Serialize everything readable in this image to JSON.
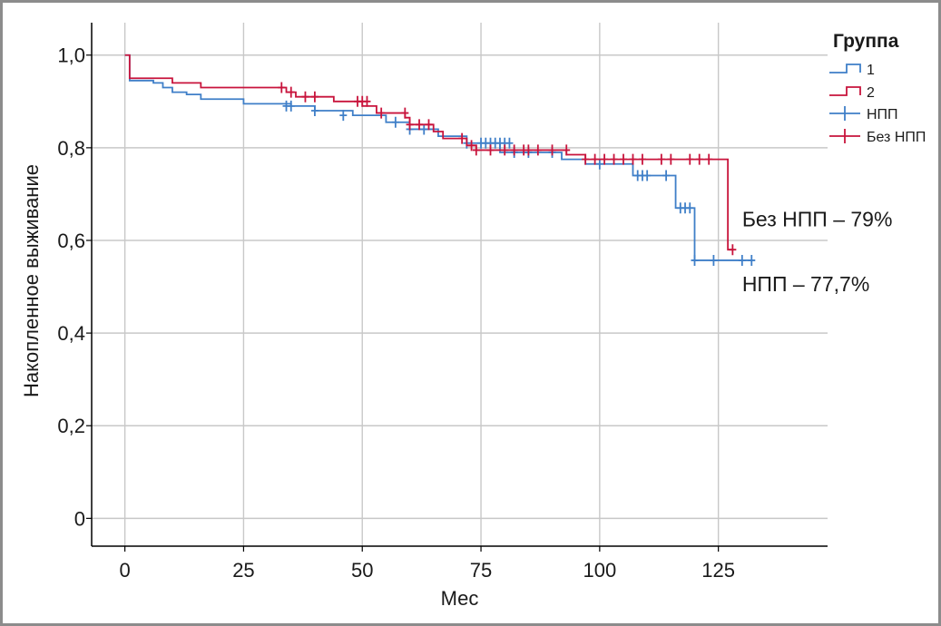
{
  "chart_data": {
    "type": "line",
    "subtype": "kaplan-meier step curve",
    "xlabel": "Мес",
    "ylabel": "Накопленное выживание",
    "xlim": [
      -7,
      148
    ],
    "ylim": [
      -0.06,
      1.07
    ],
    "x_ticks": [
      0,
      25,
      50,
      75,
      100,
      125
    ],
    "x_tick_labels": [
      "0",
      "25",
      "50",
      "75",
      "100",
      "125"
    ],
    "y_ticks": [
      0,
      0.2,
      0.4,
      0.6,
      0.8,
      1.0
    ],
    "y_tick_labels": [
      "0",
      "0,2",
      "0,4",
      "0,6",
      "0,8",
      "1,0"
    ],
    "grid": true,
    "legend": {
      "title": "Группа",
      "position": "top-right",
      "entries": [
        {
          "label": "1",
          "kind": "step-line",
          "color": "#3f7fc8"
        },
        {
          "label": "2",
          "kind": "step-line",
          "color": "#c8143c"
        },
        {
          "label": "НПП",
          "kind": "censor-mark",
          "color": "#3f7fc8"
        },
        {
          "label": "Без НПП",
          "kind": "censor-mark",
          "color": "#c8143c"
        }
      ]
    },
    "series": [
      {
        "name": "1",
        "color": "#3f7fc8",
        "x": [
          0,
          1,
          6,
          8,
          10,
          13,
          16,
          25,
          35,
          40,
          48,
          55,
          60,
          66,
          72,
          79,
          92,
          97,
          107,
          116,
          120
        ],
        "y": [
          1.0,
          0.945,
          0.94,
          0.93,
          0.92,
          0.915,
          0.905,
          0.895,
          0.89,
          0.88,
          0.87,
          0.855,
          0.84,
          0.825,
          0.81,
          0.79,
          0.775,
          0.765,
          0.74,
          0.67,
          0.557
        ],
        "end_x": 132,
        "censored": [
          {
            "x": 34,
            "y": 0.89
          },
          {
            "x": 35,
            "y": 0.89
          },
          {
            "x": 40,
            "y": 0.88
          },
          {
            "x": 46,
            "y": 0.87
          },
          {
            "x": 57,
            "y": 0.855
          },
          {
            "x": 60,
            "y": 0.84
          },
          {
            "x": 63,
            "y": 0.84
          },
          {
            "x": 72,
            "y": 0.81
          },
          {
            "x": 75,
            "y": 0.81
          },
          {
            "x": 76,
            "y": 0.81
          },
          {
            "x": 77,
            "y": 0.81
          },
          {
            "x": 78,
            "y": 0.81
          },
          {
            "x": 79,
            "y": 0.81
          },
          {
            "x": 80,
            "y": 0.81
          },
          {
            "x": 81,
            "y": 0.81
          },
          {
            "x": 82,
            "y": 0.79
          },
          {
            "x": 85,
            "y": 0.79
          },
          {
            "x": 90,
            "y": 0.79
          },
          {
            "x": 100,
            "y": 0.765
          },
          {
            "x": 108,
            "y": 0.74
          },
          {
            "x": 109,
            "y": 0.74
          },
          {
            "x": 110,
            "y": 0.74
          },
          {
            "x": 114,
            "y": 0.74
          },
          {
            "x": 117,
            "y": 0.67
          },
          {
            "x": 118,
            "y": 0.67
          },
          {
            "x": 119,
            "y": 0.67
          },
          {
            "x": 120,
            "y": 0.557
          },
          {
            "x": 124,
            "y": 0.557
          },
          {
            "x": 130,
            "y": 0.557
          },
          {
            "x": 132,
            "y": 0.557
          }
        ]
      },
      {
        "name": "2",
        "color": "#c8143c",
        "x": [
          0,
          1,
          10,
          16,
          34,
          36,
          44,
          50,
          53,
          59,
          60,
          65,
          67,
          72,
          74,
          93,
          97,
          127
        ],
        "y": [
          1.0,
          0.95,
          0.94,
          0.93,
          0.92,
          0.91,
          0.9,
          0.89,
          0.875,
          0.865,
          0.85,
          0.835,
          0.82,
          0.805,
          0.795,
          0.785,
          0.775,
          0.58
        ],
        "end_x": 128,
        "censored": [
          {
            "x": 33,
            "y": 0.93
          },
          {
            "x": 35,
            "y": 0.92
          },
          {
            "x": 38,
            "y": 0.91
          },
          {
            "x": 40,
            "y": 0.91
          },
          {
            "x": 49,
            "y": 0.9
          },
          {
            "x": 50,
            "y": 0.9
          },
          {
            "x": 51,
            "y": 0.9
          },
          {
            "x": 54,
            "y": 0.875
          },
          {
            "x": 59,
            "y": 0.875
          },
          {
            "x": 60,
            "y": 0.85
          },
          {
            "x": 62,
            "y": 0.85
          },
          {
            "x": 64,
            "y": 0.85
          },
          {
            "x": 71,
            "y": 0.82
          },
          {
            "x": 73,
            "y": 0.805
          },
          {
            "x": 74,
            "y": 0.795
          },
          {
            "x": 77,
            "y": 0.795
          },
          {
            "x": 80,
            "y": 0.795
          },
          {
            "x": 82,
            "y": 0.795
          },
          {
            "x": 84,
            "y": 0.795
          },
          {
            "x": 85,
            "y": 0.795
          },
          {
            "x": 87,
            "y": 0.795
          },
          {
            "x": 90,
            "y": 0.795
          },
          {
            "x": 93,
            "y": 0.795
          },
          {
            "x": 97,
            "y": 0.775
          },
          {
            "x": 99,
            "y": 0.775
          },
          {
            "x": 101,
            "y": 0.775
          },
          {
            "x": 103,
            "y": 0.775
          },
          {
            "x": 105,
            "y": 0.775
          },
          {
            "x": 107,
            "y": 0.775
          },
          {
            "x": 109,
            "y": 0.775
          },
          {
            "x": 113,
            "y": 0.775
          },
          {
            "x": 115,
            "y": 0.775
          },
          {
            "x": 119,
            "y": 0.775
          },
          {
            "x": 121,
            "y": 0.775
          },
          {
            "x": 123,
            "y": 0.775
          },
          {
            "x": 128,
            "y": 0.58
          }
        ]
      }
    ],
    "annotations": [
      {
        "text": "Без НПП – 79%",
        "x": 130,
        "y": 0.63
      },
      {
        "text": "НПП – 77,7%",
        "x": 130,
        "y": 0.49
      }
    ]
  }
}
